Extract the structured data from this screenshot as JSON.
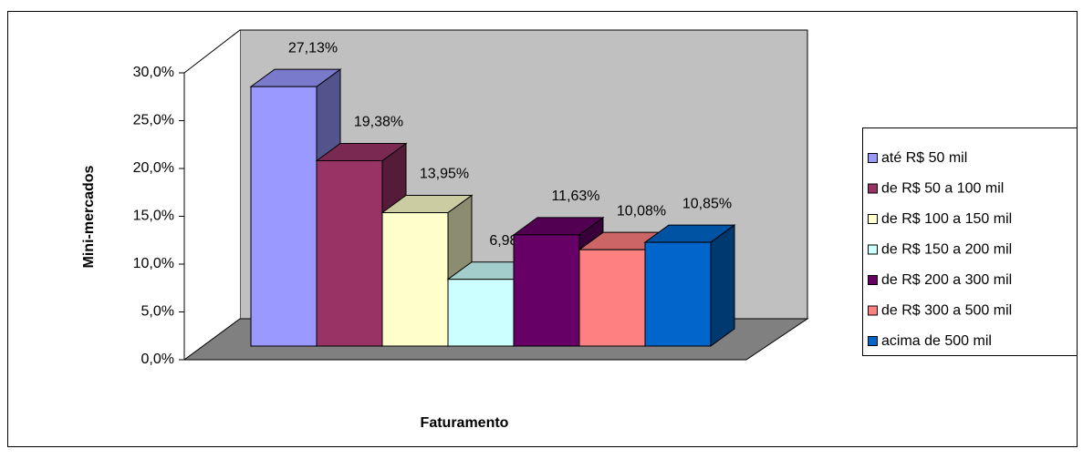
{
  "chart_data": {
    "type": "bar",
    "y_label": "Mini-mercados",
    "x_label": "Faturamento",
    "ylim": [
      0,
      30
    ],
    "yticks": [
      {
        "value": 0,
        "label": "0,0%"
      },
      {
        "value": 5,
        "label": "5,0%"
      },
      {
        "value": 10,
        "label": "10,0%"
      },
      {
        "value": 15,
        "label": "15,0%"
      },
      {
        "value": 20,
        "label": "20,0%"
      },
      {
        "value": 25,
        "label": "25,0%"
      },
      {
        "value": 30,
        "label": "30,0%"
      }
    ],
    "series": [
      {
        "name": "até R$ 50 mil",
        "color": "#9999ff",
        "values": [
          27.13
        ],
        "value_labels": [
          "27,13%"
        ]
      },
      {
        "name": "de R$ 50 a 100 mil",
        "color": "#993366",
        "values": [
          19.38
        ],
        "value_labels": [
          "19,38%"
        ]
      },
      {
        "name": "de R$ 100 a 150 mil",
        "color": "#ffffcc",
        "values": [
          13.95
        ],
        "value_labels": [
          "13,95%"
        ]
      },
      {
        "name": "de R$ 150 a 200 mil",
        "color": "#ccffff",
        "values": [
          6.98
        ],
        "value_labels": [
          "6,98%"
        ]
      },
      {
        "name": "de R$ 200 a 300 mil",
        "color": "#660066",
        "values": [
          11.63
        ],
        "value_labels": [
          "11,63%"
        ]
      },
      {
        "name": "de R$ 300 a 500 mil",
        "color": "#ff8080",
        "values": [
          10.08
        ],
        "value_labels": [
          "10,08%"
        ]
      },
      {
        "name": "acima de 500 mil",
        "color": "#0066cc",
        "values": [
          10.85
        ],
        "value_labels": [
          "10,85%"
        ]
      }
    ]
  }
}
